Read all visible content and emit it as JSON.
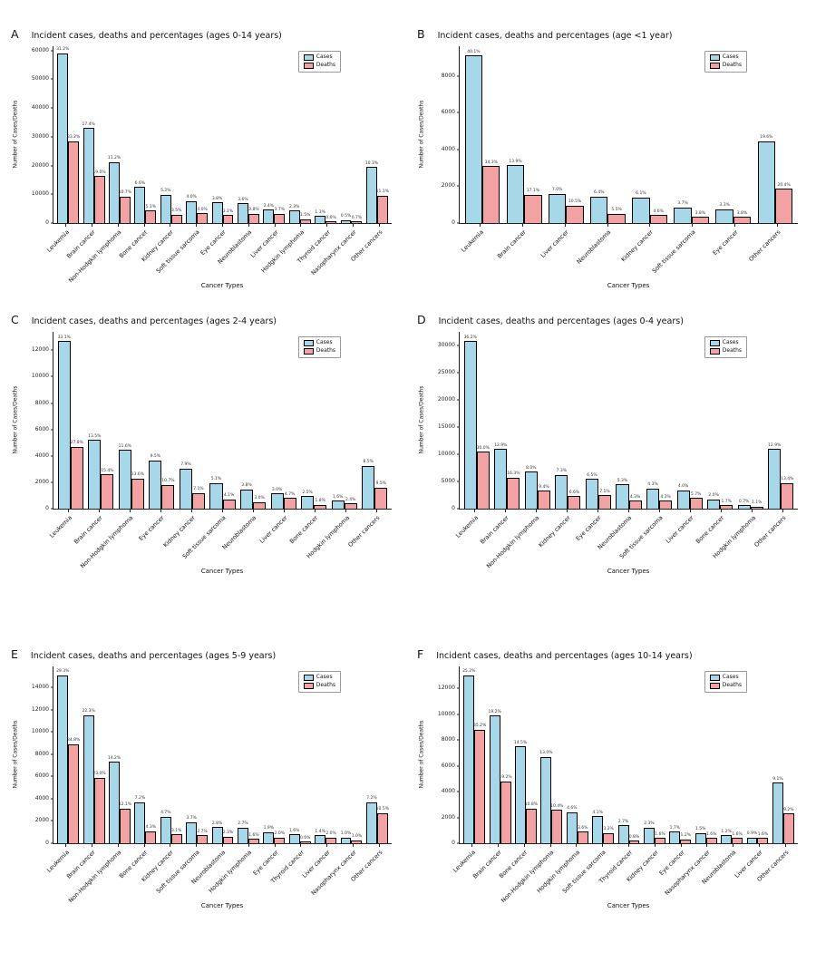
{
  "legend": {
    "cases_label": "Cases",
    "deaths_label": "Deaths"
  },
  "colors": {
    "cases": "#a6d8ea",
    "deaths": "#f2a2a2",
    "edge": "#000000"
  },
  "chart_data": [
    {
      "type": "bar",
      "panel": "A",
      "title": "Incident cases, deaths and percentages (ages 0-14 years)",
      "xlabel": "Cancer Types",
      "ylabel": "Number of Cases/Deaths",
      "ymax": 61500,
      "yticks": [
        0,
        10000,
        20000,
        30000,
        40000,
        50000,
        60000
      ],
      "legend_position": "upper right",
      "grid": false,
      "categories": [
        "Leukemia",
        "Brain cancer",
        "Non-Hodgkin lymphoma",
        "Bone cancer",
        "Kidney cancer",
        "Soft tissue sarcoma",
        "Eye cancer",
        "Neuroblastoma",
        "Liver cancer",
        "Hodgkin lymphoma",
        "Thyroid cancer",
        "Nasopharynx cancer",
        "Other cancers"
      ],
      "series": [
        {
          "name": "Cases",
          "values": [
            59000,
            33000,
            21200,
            12500,
            9800,
            7600,
            7200,
            6800,
            4600,
            4400,
            2500,
            1000,
            19500
          ],
          "labels": [
            "31.2%",
            "17.4%",
            "11.2%",
            "6.6%",
            "5.2%",
            "4.0%",
            "3.8%",
            "3.6%",
            "2.4%",
            "2.3%",
            "1.3%",
            "0.5%",
            "10.3%"
          ]
        },
        {
          "name": "Deaths",
          "values": [
            28500,
            16300,
            9200,
            4400,
            3000,
            3400,
            2700,
            3300,
            3200,
            1300,
            500,
            600,
            9500
          ],
          "labels": [
            "33.2%",
            "19.0%",
            "10.7%",
            "5.1%",
            "3.5%",
            "4.0%",
            "3.1%",
            "3.8%",
            "3.7%",
            "1.5%",
            "0.6%",
            "0.7%",
            "11.1%"
          ]
        }
      ]
    },
    {
      "type": "bar",
      "panel": "B",
      "title": "Incident cases, deaths and percentages (age <1 year)",
      "xlabel": "Cancer Types",
      "ylabel": "Number of Cases/Deaths",
      "ymax": 9600,
      "yticks": [
        0,
        2000,
        4000,
        6000,
        8000
      ],
      "legend_position": "upper right",
      "grid": false,
      "categories": [
        "Leukemia",
        "Brain cancer",
        "Liver cancer",
        "Neuroblastoma",
        "Kidney cancer",
        "Soft tissue sarcoma",
        "Eye cancer",
        "Other cancers"
      ],
      "series": [
        {
          "name": "Cases",
          "values": [
            9100,
            3150,
            1600,
            1450,
            1400,
            850,
            750,
            4450
          ],
          "labels": [
            "40.1%",
            "13.9%",
            "7.0%",
            "6.4%",
            "6.1%",
            "3.7%",
            "3.3%",
            "19.6%"
          ]
        },
        {
          "name": "Deaths",
          "values": [
            3100,
            1550,
            950,
            500,
            420,
            340,
            340,
            1850
          ],
          "labels": [
            "34.3%",
            "17.1%",
            "10.5%",
            "5.5%",
            "4.6%",
            "3.8%",
            "3.8%",
            "20.4%"
          ]
        }
      ]
    },
    {
      "type": "bar",
      "panel": "C",
      "title": "Incident cases, deaths and percentages (ages 2-4 years)",
      "xlabel": "Cancer Types",
      "ylabel": "Number of Cases/Deaths",
      "ymax": 13400,
      "yticks": [
        0,
        2000,
        4000,
        6000,
        8000,
        10000,
        12000
      ],
      "legend_position": "upper right",
      "grid": false,
      "categories": [
        "Leukemia",
        "Brain cancer",
        "Non-Hodgkin lymphoma",
        "Eye cancer",
        "Kidney cancer",
        "Soft tissue sarcoma",
        "Neuroblastoma",
        "Liver cancer",
        "Bone cancer",
        "Hodgkin lymphoma",
        "Other cancers"
      ],
      "series": [
        {
          "name": "Cases",
          "values": [
            12700,
            5200,
            4450,
            3650,
            3050,
            1950,
            1450,
            1150,
            950,
            600,
            3250
          ],
          "labels": [
            "33.1%",
            "13.5%",
            "11.6%",
            "9.5%",
            "7.9%",
            "5.1%",
            "3.8%",
            "3.0%",
            "2.5%",
            "1.6%",
            "8.5%"
          ]
        },
        {
          "name": "Deaths",
          "values": [
            4700,
            2600,
            2300,
            1800,
            1200,
            700,
            500,
            800,
            300,
            400,
            1600
          ],
          "labels": [
            "27.8%",
            "15.4%",
            "13.6%",
            "10.7%",
            "7.1%",
            "4.1%",
            "3.0%",
            "4.7%",
            "1.8%",
            "2.4%",
            "9.5%"
          ]
        }
      ]
    },
    {
      "type": "bar",
      "panel": "D",
      "title": "Incident cases, deaths and percentages (ages 0-4 years)",
      "xlabel": "Cancer Types",
      "ylabel": "Number of Cases/Deaths",
      "ymax": 32500,
      "yticks": [
        0,
        5000,
        10000,
        15000,
        20000,
        25000,
        30000
      ],
      "legend_position": "upper right",
      "grid": false,
      "categories": [
        "Leukemia",
        "Brain cancer",
        "Non-Hodgkin lymphoma",
        "Kidney cancer",
        "Eye cancer",
        "Neuroblastoma",
        "Soft tissue sarcoma",
        "Liver cancer",
        "Bone cancer",
        "Hodgkin lymphoma",
        "Other cancers"
      ],
      "series": [
        {
          "name": "Cases",
          "values": [
            30800,
            11000,
            6800,
            6200,
            5500,
            4500,
            3700,
            3400,
            1700,
            600,
            11000
          ],
          "labels": [
            "36.2%",
            "12.9%",
            "8.0%",
            "7.3%",
            "6.5%",
            "5.3%",
            "4.3%",
            "4.0%",
            "2.0%",
            "0.7%",
            "12.9%"
          ]
        },
        {
          "name": "Deaths",
          "values": [
            10500,
            5700,
            3300,
            2300,
            2500,
            1500,
            1500,
            2000,
            600,
            400,
            4700
          ],
          "labels": [
            "30.0%",
            "16.3%",
            "9.4%",
            "6.6%",
            "7.1%",
            "4.3%",
            "4.3%",
            "5.7%",
            "1.7%",
            "1.1%",
            "13.4%"
          ]
        }
      ]
    },
    {
      "type": "bar",
      "panel": "E",
      "title": "Incident cases, deaths and percentages (ages 5-9 years)",
      "xlabel": "Cancer Types",
      "ylabel": "Number of Cases/Deaths",
      "ymax": 15900,
      "yticks": [
        0,
        2000,
        4000,
        6000,
        8000,
        10000,
        12000,
        14000
      ],
      "legend_position": "upper right",
      "grid": false,
      "categories": [
        "Leukemia",
        "Brain cancer",
        "Non-Hodgkin lymphoma",
        "Bone cancer",
        "Kidney cancer",
        "Soft tissue sarcoma",
        "Neuroblastoma",
        "Hodgkin lymphoma",
        "Eye cancer",
        "Thyroid cancer",
        "Liver cancer",
        "Nasopharynx cancer",
        "Other cancers"
      ],
      "series": [
        {
          "name": "Cases",
          "values": [
            15100,
            11500,
            7300,
            3700,
            2400,
            1900,
            1450,
            1400,
            1000,
            800,
            700,
            500,
            3700
          ],
          "labels": [
            "29.3%",
            "22.3%",
            "14.2%",
            "7.2%",
            "4.7%",
            "3.7%",
            "2.8%",
            "2.7%",
            "1.9%",
            "1.6%",
            "1.4%",
            "1.0%",
            "7.2%"
          ]
        },
        {
          "name": "Deaths",
          "values": [
            8900,
            5900,
            3100,
            1100,
            800,
            700,
            600,
            400,
            500,
            150,
            500,
            250,
            2700
          ],
          "labels": [
            "34.8%",
            "23.0%",
            "12.1%",
            "4.3%",
            "3.1%",
            "2.7%",
            "2.3%",
            "1.6%",
            "2.0%",
            "0.6%",
            "2.0%",
            "1.0%",
            "10.5%"
          ]
        }
      ]
    },
    {
      "type": "bar",
      "panel": "F",
      "title": "Incident cases, deaths and percentages (ages 10-14 years)",
      "xlabel": "Cancer Types",
      "ylabel": "Number of Cases/Deaths",
      "ymax": 13700,
      "yticks": [
        0,
        2000,
        4000,
        6000,
        8000,
        10000,
        12000
      ],
      "legend_position": "upper right",
      "grid": false,
      "categories": [
        "Leukemia",
        "Brain cancer",
        "Bone cancer",
        "Non-Hodgkin lymphoma",
        "Hodgkin lymphoma",
        "Soft tissue sarcoma",
        "Thyroid cancer",
        "Kidney cancer",
        "Eye cancer",
        "Nasopharynx cancer",
        "Neuroblastoma",
        "Liver cancer",
        "Other cancers"
      ],
      "series": [
        {
          "name": "Cases",
          "values": [
            13000,
            9900,
            7500,
            6700,
            2400,
            2100,
            1400,
            1200,
            900,
            800,
            600,
            450,
            4700
          ],
          "labels": [
            "25.2%",
            "19.2%",
            "14.5%",
            "13.0%",
            "4.6%",
            "4.1%",
            "2.7%",
            "2.3%",
            "1.7%",
            "1.5%",
            "1.2%",
            "0.9%",
            "9.1%"
          ]
        },
        {
          "name": "Deaths",
          "values": [
            8800,
            4800,
            2700,
            2600,
            900,
            800,
            200,
            400,
            300,
            400,
            400,
            400,
            2300
          ],
          "labels": [
            "35.2%",
            "19.2%",
            "10.8%",
            "10.4%",
            "3.6%",
            "3.2%",
            "0.8%",
            "1.6%",
            "1.2%",
            "1.6%",
            "1.6%",
            "1.6%",
            "9.2%"
          ]
        }
      ]
    }
  ]
}
